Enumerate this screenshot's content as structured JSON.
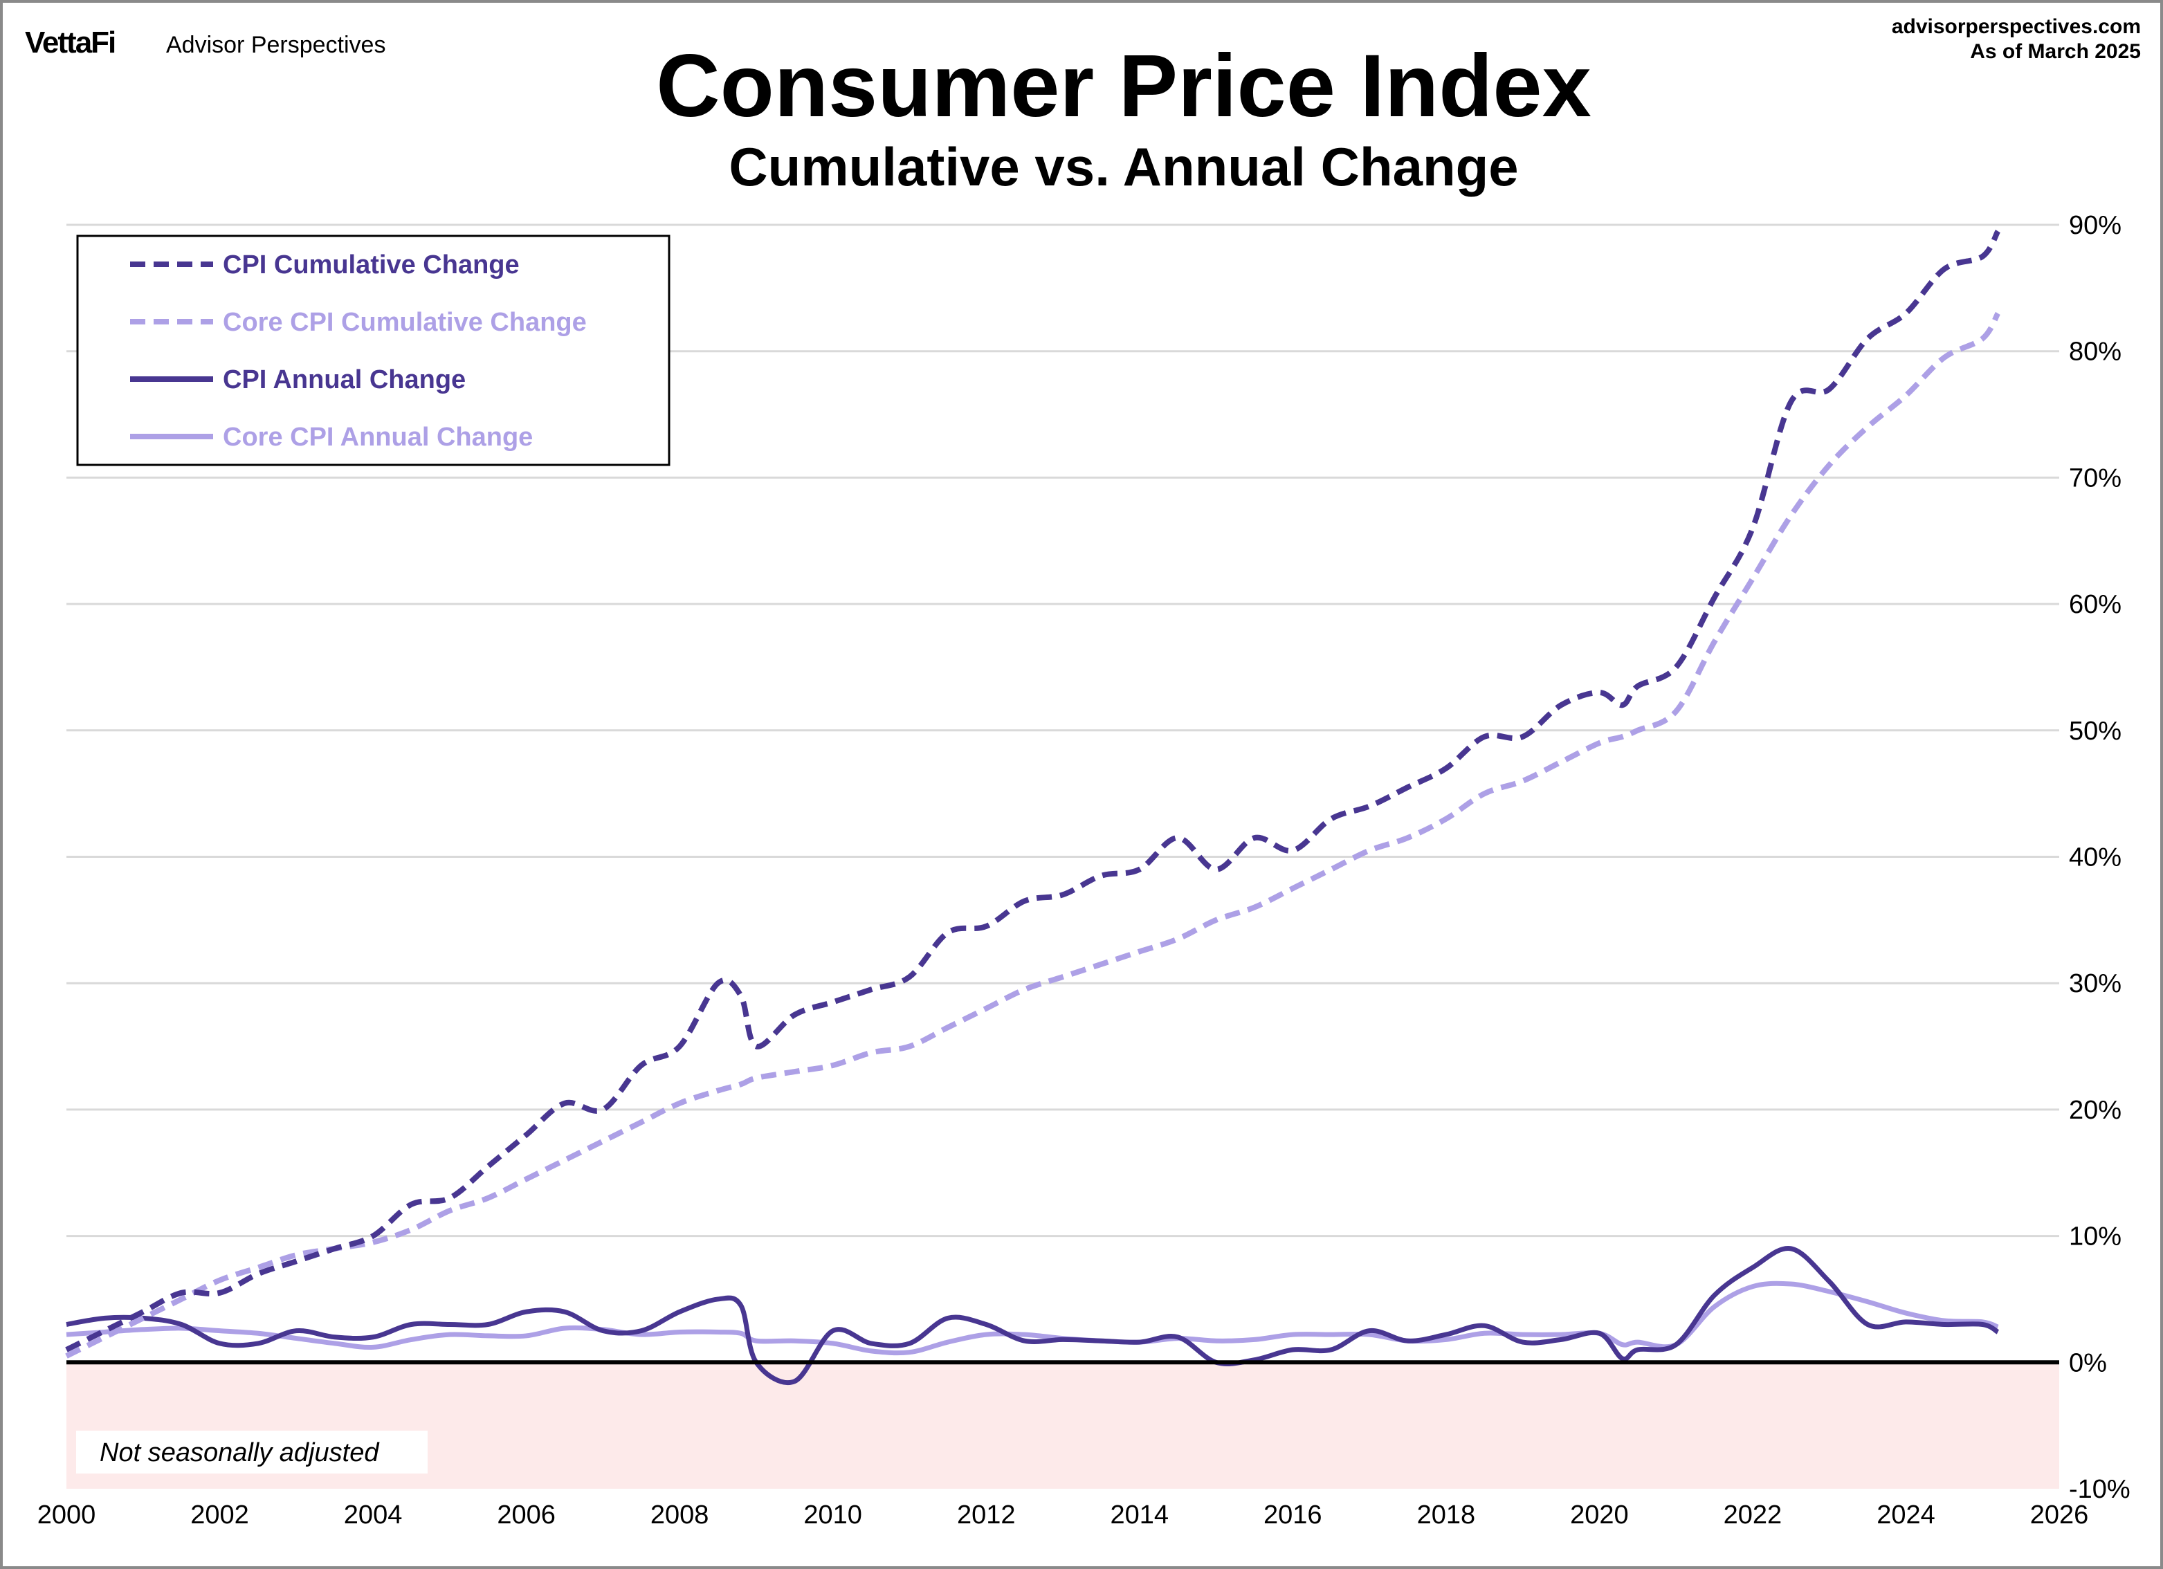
{
  "header": {
    "logo": "VettaFi",
    "brand": "Advisor Perspectives",
    "site": "advisorperspectives.com",
    "as_of": "As of March 2025"
  },
  "note": "Not seasonally adjusted",
  "colors": {
    "dark": "#483691",
    "light": "#ada0e6",
    "negative_band": "#fdeaea"
  },
  "chart_data": {
    "type": "line",
    "title": "Consumer Price Index",
    "subtitle": "Cumulative vs. Annual Change",
    "xlim": [
      2000,
      2026
    ],
    "ylim": [
      -10,
      90
    ],
    "x_ticks": [
      "2000",
      "2002",
      "2004",
      "2006",
      "2008",
      "2010",
      "2012",
      "2014",
      "2016",
      "2018",
      "2020",
      "2022",
      "2024",
      "2026"
    ],
    "y_ticks": [
      "-10%",
      "0%",
      "10%",
      "20%",
      "30%",
      "40%",
      "50%",
      "60%",
      "70%",
      "80%",
      "90%"
    ],
    "y_axis_side": "right",
    "grid": true,
    "legend_position": "top-left",
    "x": [
      2000,
      2000.5,
      2001,
      2001.5,
      2002,
      2002.5,
      2003,
      2003.5,
      2004,
      2004.5,
      2005,
      2005.5,
      2006,
      2006.5,
      2007,
      2007.5,
      2008,
      2008.5,
      2008.8,
      2009,
      2009.5,
      2010,
      2010.5,
      2011,
      2011.5,
      2012,
      2012.5,
      2013,
      2013.5,
      2014,
      2014.5,
      2015,
      2015.5,
      2016,
      2016.5,
      2017,
      2017.5,
      2018,
      2018.5,
      2019,
      2019.5,
      2020,
      2020.3,
      2020.5,
      2021,
      2021.5,
      2022,
      2022.5,
      2023,
      2023.5,
      2024,
      2024.5,
      2025,
      2025.2
    ],
    "series": [
      {
        "name": "CPI Cumulative Change",
        "style": "dashed",
        "color": "#483691",
        "values": [
          1,
          2.5,
          4,
          5.5,
          5.5,
          7,
          8,
          9,
          10,
          12.5,
          13,
          15.5,
          18,
          20.5,
          20,
          23.5,
          25,
          30,
          29,
          25,
          27.5,
          28.5,
          29.5,
          30.5,
          34,
          34.5,
          36.5,
          37,
          38.5,
          39,
          41.5,
          39,
          41.5,
          40.5,
          43,
          44,
          45.5,
          47,
          49.5,
          49.5,
          52,
          53,
          52,
          53.5,
          55,
          60.5,
          66,
          76,
          77,
          81,
          83,
          86.5,
          87.5,
          89.5
        ]
      },
      {
        "name": "Core CPI Cumulative Change",
        "style": "dashed",
        "color": "#ada0e6",
        "values": [
          0.5,
          2,
          3.5,
          5,
          6.5,
          7.5,
          8.5,
          9,
          9.5,
          10.5,
          12,
          13,
          14.5,
          16,
          17.5,
          19,
          20.5,
          21.5,
          22,
          22.5,
          23,
          23.5,
          24.5,
          25,
          26.5,
          28,
          29.5,
          30.5,
          31.5,
          32.5,
          33.5,
          35,
          36,
          37.5,
          39,
          40.5,
          41.5,
          43,
          45,
          46,
          47.5,
          49,
          49.5,
          50,
          51.5,
          57,
          62,
          67,
          71,
          74,
          76.5,
          79.5,
          81,
          83
        ]
      },
      {
        "name": "CPI Annual Change",
        "style": "solid",
        "color": "#483691",
        "values": [
          3,
          3.5,
          3.5,
          3,
          1.5,
          1.5,
          2.5,
          2,
          2,
          3,
          3,
          3,
          4,
          4,
          2.5,
          2.5,
          4,
          5,
          4.5,
          0,
          -1.5,
          2.5,
          1.5,
          1.5,
          3.5,
          3,
          1.7,
          1.8,
          1.7,
          1.6,
          2,
          0,
          0.2,
          1,
          1,
          2.5,
          1.7,
          2.2,
          2.9,
          1.6,
          1.8,
          2.3,
          0.3,
          1,
          1.4,
          5.3,
          7.5,
          9,
          6.4,
          3,
          3.2,
          3,
          3,
          2.4
        ]
      },
      {
        "name": "Core CPI Annual Change",
        "style": "solid",
        "color": "#ada0e6",
        "values": [
          2.2,
          2.4,
          2.6,
          2.7,
          2.5,
          2.3,
          1.9,
          1.5,
          1.2,
          1.8,
          2.2,
          2.1,
          2.1,
          2.7,
          2.6,
          2.2,
          2.4,
          2.4,
          2.3,
          1.7,
          1.7,
          1.5,
          0.9,
          0.8,
          1.6,
          2.2,
          2.2,
          1.9,
          1.7,
          1.6,
          1.9,
          1.7,
          1.8,
          2.2,
          2.2,
          2.2,
          1.7,
          1.8,
          2.3,
          2.2,
          2.2,
          2.3,
          1.4,
          1.6,
          1.4,
          4.4,
          6,
          6.2,
          5.6,
          4.8,
          3.9,
          3.3,
          3.2,
          2.8
        ]
      }
    ]
  }
}
